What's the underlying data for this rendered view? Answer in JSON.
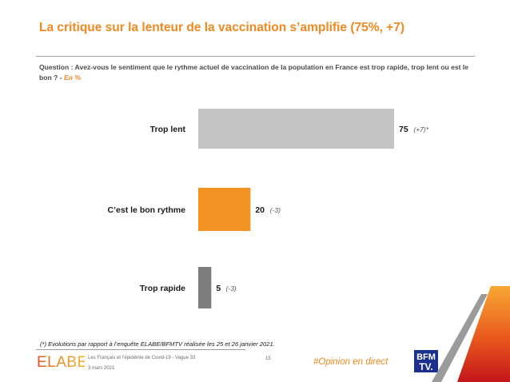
{
  "slide": {
    "title": "La critique sur la lenteur de la vaccination s’amplifie (75%, +7)",
    "question": "Question : Avez-vous le sentiment que le rythme actuel de vaccination de la population en France est trop rapide, trop lent ou est le bon ? - ",
    "question_unit": "En %",
    "footnote": "(*) Evolutions par rapport à l’enquête ELABE/BFMTV réalisée les 25 et 26 janvier 2021.",
    "footer_study": "Les Français et l’épidémie de Covid-19 - Vague 33",
    "footer_date": "3 mars 2021",
    "page_number": "15",
    "hashtag": "#Opinion en direct",
    "elabe_logo_text": "ELABE",
    "bfm_logo_text": [
      "BFM",
      "TV."
    ]
  },
  "colors": {
    "accent": "#f0891f",
    "bar_trop_lent": "#c4c4c4",
    "bar_bon_rythme": "#f39323",
    "bar_trop_rapide": "#7d7d7d",
    "bfm_blue": "#1d2f8c"
  },
  "chart_data": {
    "type": "bar",
    "orientation": "horizontal",
    "categories": [
      "Trop lent",
      "C’est le bon rythme",
      "Trop rapide"
    ],
    "values": [
      75,
      20,
      5
    ],
    "value_labels": [
      "75",
      "20",
      "5"
    ],
    "evolutions": [
      "(+7)*",
      "(-3)",
      "(-3)"
    ],
    "xlim": [
      0,
      100
    ],
    "grid": false,
    "legend": "none"
  }
}
